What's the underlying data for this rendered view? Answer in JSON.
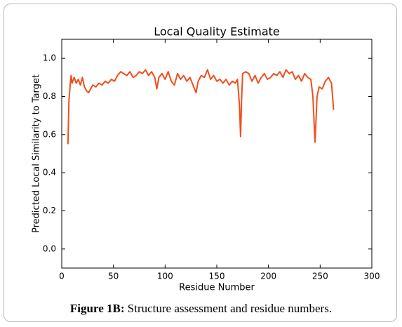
{
  "chart_data": {
    "type": "line",
    "title": "Local Quality Estimate",
    "x_label": "Residue Number",
    "y_label": "Predicted Local Similarity to Target",
    "x": [
      6,
      7,
      8,
      9,
      10,
      12,
      14,
      16,
      18,
      20,
      22,
      24,
      26,
      28,
      30,
      33,
      36,
      39,
      42,
      45,
      48,
      51,
      54,
      57,
      60,
      63,
      66,
      69,
      72,
      75,
      78,
      81,
      84,
      87,
      90,
      92,
      94,
      97,
      100,
      103,
      106,
      109,
      112,
      115,
      118,
      121,
      124,
      127,
      130,
      132,
      135,
      138,
      141,
      144,
      147,
      150,
      153,
      156,
      159,
      162,
      165,
      168,
      170,
      172,
      173,
      174,
      175,
      178,
      181,
      184,
      187,
      190,
      193,
      196,
      199,
      202,
      205,
      208,
      211,
      214,
      217,
      220,
      223,
      226,
      229,
      232,
      235,
      238,
      241,
      243,
      245,
      247,
      249,
      252,
      255,
      258,
      261,
      263
    ],
    "values": [
      0.55,
      0.78,
      0.85,
      0.91,
      0.87,
      0.9,
      0.87,
      0.89,
      0.86,
      0.9,
      0.85,
      0.83,
      0.82,
      0.84,
      0.86,
      0.85,
      0.87,
      0.86,
      0.88,
      0.87,
      0.89,
      0.88,
      0.91,
      0.93,
      0.92,
      0.91,
      0.93,
      0.9,
      0.91,
      0.93,
      0.92,
      0.94,
      0.91,
      0.93,
      0.9,
      0.84,
      0.9,
      0.92,
      0.89,
      0.93,
      0.88,
      0.86,
      0.92,
      0.89,
      0.91,
      0.88,
      0.9,
      0.86,
      0.82,
      0.88,
      0.91,
      0.9,
      0.94,
      0.89,
      0.91,
      0.88,
      0.89,
      0.87,
      0.89,
      0.86,
      0.88,
      0.87,
      0.89,
      0.75,
      0.59,
      0.78,
      0.92,
      0.93,
      0.92,
      0.88,
      0.91,
      0.87,
      0.9,
      0.92,
      0.89,
      0.9,
      0.92,
      0.91,
      0.93,
      0.9,
      0.94,
      0.92,
      0.93,
      0.89,
      0.91,
      0.88,
      0.92,
      0.9,
      0.89,
      0.8,
      0.56,
      0.8,
      0.85,
      0.84,
      0.88,
      0.9,
      0.87,
      0.73
    ],
    "color": "#f04e1c",
    "xlim": [
      0,
      300
    ],
    "xticks": [
      0,
      50,
      100,
      150,
      200,
      250,
      300
    ],
    "ylim": [
      -0.1,
      1.1
    ],
    "yticks": [
      {
        "value": 0,
        "label": "0.0"
      },
      0.2,
      0.4,
      0.6,
      0.8,
      {
        "value": 1,
        "label": "1.0"
      }
    ]
  },
  "caption": {
    "label": "Figure 1B:",
    "text": "Structure assessment and residue numbers."
  }
}
